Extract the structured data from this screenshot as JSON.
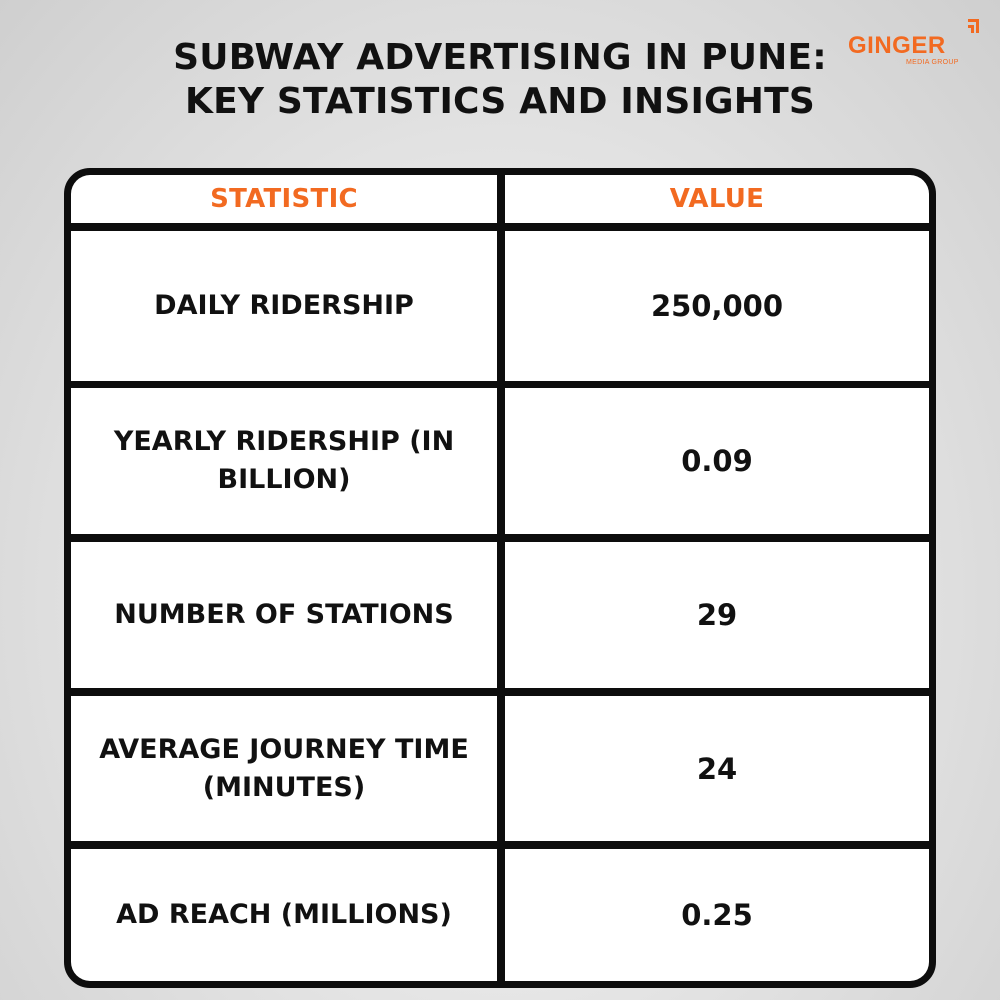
{
  "title": {
    "line1": "SUBWAY ADVERTISING IN PUNE:",
    "line2": "KEY STATISTICS AND INSIGHTS"
  },
  "logo": {
    "brand": "GINGER",
    "tagline": "MEDIA GROUP",
    "color": "#f26a21"
  },
  "table": {
    "headers": {
      "statistic": "STATISTIC",
      "value": "VALUE"
    },
    "rows": [
      {
        "statistic": "DAILY RIDERSHIP",
        "value": "250,000"
      },
      {
        "statistic": "YEARLY RIDERSHIP (IN BILLION)",
        "value": "0.09"
      },
      {
        "statistic": "NUMBER OF STATIONS",
        "value": "29"
      },
      {
        "statistic": "AVERAGE JOURNEY TIME (MINUTES)",
        "value": "24"
      },
      {
        "statistic": "AD REACH (MILLIONS)",
        "value": "0.25"
      }
    ]
  },
  "colors": {
    "accent": "#f26a21",
    "text": "#111111",
    "border": "#0d0d0d"
  }
}
